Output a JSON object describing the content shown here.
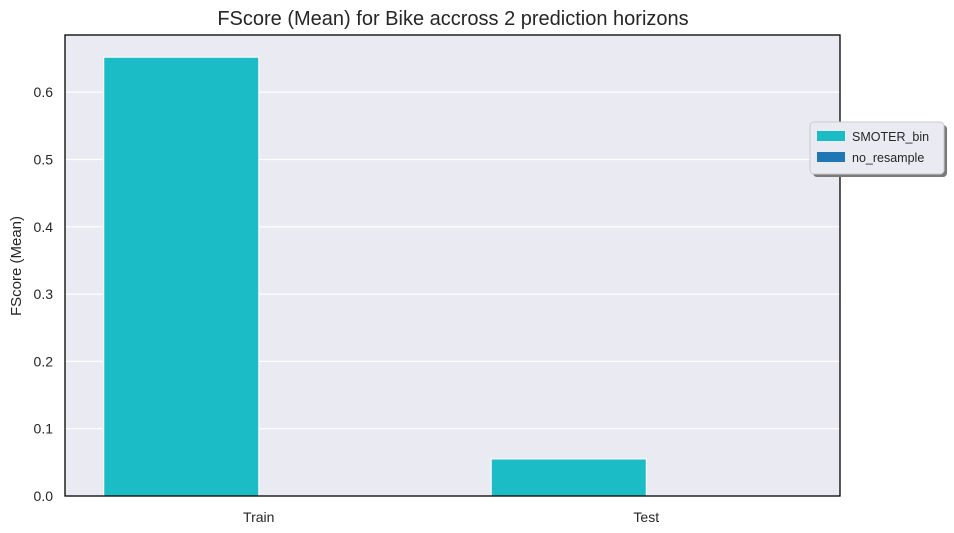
{
  "chart_data": {
    "type": "bar",
    "title": "FScore (Mean) for Bike accross 2 prediction horizons",
    "xlabel": "",
    "ylabel": "FScore (Mean)",
    "categories": [
      "Train",
      "Test"
    ],
    "series": [
      {
        "name": "SMOTER_bin",
        "values": [
          0.652,
          0.055
        ],
        "color": "#1cbcc7"
      },
      {
        "name": "no_resample",
        "values": [
          0.0,
          0.0
        ],
        "color": "#1f77b4"
      }
    ],
    "ylim": [
      0,
      0.685
    ],
    "yticks": [
      "0.0",
      "0.1",
      "0.2",
      "0.3",
      "0.4",
      "0.5",
      "0.6"
    ],
    "grid": true,
    "legend_position": "right",
    "plot_background": "#eaeaf2"
  }
}
